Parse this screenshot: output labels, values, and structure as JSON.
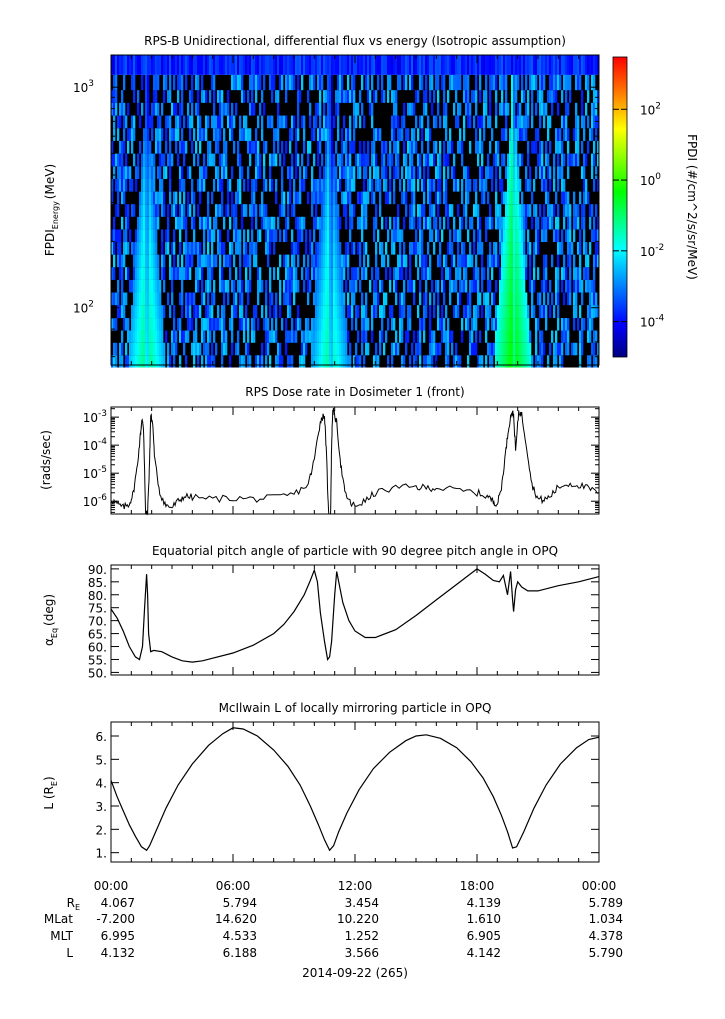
{
  "chart_data": [
    {
      "type": "heatmap",
      "title": "RPS-B  Unidirectional, differential flux vs energy (Isotropic assumption)",
      "ylabel_main": "FPDI",
      "ylabel_sub": "Energy",
      "ylabel_unit": "(MeV)",
      "yscale": "log",
      "ylim": [
        55,
        1400
      ],
      "yticks": [
        {
          "value": 100,
          "base": "10",
          "exp": "2"
        },
        {
          "value": 1000,
          "base": "10",
          "exp": "3"
        }
      ],
      "xlim_hours": [
        0,
        24
      ],
      "zscale": "log",
      "zlim": [
        1e-05,
        3000
      ],
      "colorbar_label": "FPDI (#/cm^2/s/sr/MeV)",
      "colorbar_ticks": [
        {
          "value": 0.0001,
          "base": "10",
          "exp": "-4"
        },
        {
          "value": 0.01,
          "base": "10",
          "exp": "-2"
        },
        {
          "value": 1,
          "base": "10",
          "exp": "0"
        },
        {
          "value": 100,
          "base": "10",
          "exp": "2"
        }
      ],
      "energy_channels_mev": [
        57,
        65,
        74,
        84,
        96,
        110,
        125,
        143,
        163,
        186,
        212,
        242,
        276,
        315,
        359,
        410,
        468,
        534,
        610,
        696,
        795,
        908,
        1036,
        1250
      ],
      "belt_crossings": [
        {
          "center_hours": 1.75,
          "dip_hours": 1.78,
          "peak_log10_flux": -1.0
        },
        {
          "center_hours": 10.75,
          "dip_hours": 10.8,
          "peak_log10_flux": -1.2
        },
        {
          "center_hours": 19.75,
          "dip_hours": 19.8,
          "peak_log10_flux": -0.2
        }
      ],
      "background_log10_flux_range": [
        -3.9,
        -2.3
      ]
    },
    {
      "type": "line",
      "title": "RPS  Dose rate in Dosimeter 1 (front)",
      "ylabel": "(rads/sec)",
      "yscale": "log",
      "ylim": [
        3.5e-07,
        0.0023
      ],
      "yticks": [
        {
          "value": 1e-06,
          "base": "10",
          "exp": "-6"
        },
        {
          "value": 1e-05,
          "base": "10",
          "exp": "-5"
        },
        {
          "value": 0.0001,
          "base": "10",
          "exp": "-4"
        },
        {
          "value": 0.001,
          "base": "10",
          "exp": "-3"
        }
      ],
      "series": [
        {
          "x": [
            0.0,
            0.3,
            0.6,
            0.9,
            1.1,
            1.3,
            1.45,
            1.5,
            1.55,
            1.6,
            1.7,
            1.8,
            1.9,
            1.95,
            2.05,
            2.15,
            2.4,
            2.7,
            3.0,
            3.3,
            3.6,
            4.0,
            5.0,
            6.0,
            7.0,
            8.0,
            9.0,
            9.7,
            10.0,
            10.2,
            10.35,
            10.5,
            10.6,
            10.7,
            10.8,
            10.85,
            10.9,
            10.95,
            11.1,
            11.3,
            11.5,
            11.8,
            12.0,
            12.5,
            13.0,
            14.0,
            15.0,
            15.5,
            16.0,
            17.0,
            18.0,
            18.5,
            18.8,
            19.0,
            19.2,
            19.4,
            19.55,
            19.7,
            19.8,
            19.9,
            20.05,
            20.2,
            20.45,
            20.7,
            21.0,
            21.3,
            21.6,
            22.0,
            22.5,
            23.0,
            23.5,
            24.0
          ],
          "y": [
            1.2e-06,
            8e-07,
            6e-07,
            8e-07,
            2e-06,
            2e-05,
            0.00025,
            0.0006,
            0.0008,
            0.0004,
            3.5e-07,
            3.5e-07,
            3e-05,
            0.0012,
            0.0006,
            3e-05,
            2e-06,
            7e-07,
            6e-07,
            1e-06,
            1.5e-06,
            1.4e-06,
            1.2e-06,
            1.3e-06,
            1.2e-06,
            1.3e-06,
            1.8e-06,
            4e-06,
            3e-05,
            0.0003,
            0.0009,
            0.0012,
            4e-05,
            3.5e-07,
            3.5e-07,
            0.0001,
            0.0015,
            0.0016,
            0.0006,
            2e-05,
            2e-06,
            8e-07,
            7e-07,
            1e-06,
            2e-06,
            3e-06,
            3.2e-06,
            3e-06,
            3e-06,
            2.5e-06,
            2e-06,
            1.5e-06,
            1e-06,
            8e-07,
            3e-06,
            5e-05,
            0.0004,
            0.0015,
            0.0012,
            6e-05,
            0.0016,
            0.0012,
            8e-05,
            4e-06,
            1.2e-06,
            1.1e-06,
            1.5e-06,
            3.2e-06,
            4.2e-06,
            3.8e-06,
            2.8e-06,
            2e-06
          ]
        }
      ]
    },
    {
      "type": "line",
      "title": "Equatorial pitch angle of particle with 90 degree pitch angle in OPQ",
      "ylabel_main": "α",
      "ylabel_sub": "Eq",
      "ylabel_unit": "(deg)",
      "ylim": [
        49,
        91.5
      ],
      "yticks": [
        50,
        55,
        60,
        65,
        70,
        75,
        80,
        85,
        90
      ],
      "ytick_labels": [
        "50.",
        "55.",
        "60.",
        "65.",
        "70.",
        "75.",
        "80.",
        "85.",
        "90."
      ],
      "series": [
        {
          "x": [
            0.0,
            0.3,
            0.6,
            0.9,
            1.2,
            1.4,
            1.55,
            1.65,
            1.75,
            1.8,
            1.85,
            1.95,
            2.1,
            2.5,
            3.0,
            3.5,
            4.0,
            4.5,
            5.0,
            6.0,
            7.0,
            8.0,
            8.5,
            9.0,
            9.5,
            9.8,
            10.0,
            10.15,
            10.3,
            10.5,
            10.65,
            10.75,
            10.85,
            11.0,
            11.1,
            11.2,
            11.4,
            11.7,
            12.0,
            12.5,
            13.0,
            14.0,
            15.0,
            16.0,
            17.0,
            18.0,
            18.4,
            18.8,
            19.1,
            19.3,
            19.5,
            19.65,
            19.75,
            19.8,
            19.9,
            20.0,
            20.2,
            20.5,
            21.0,
            22.0,
            23.0,
            24.0
          ],
          "y": [
            74.5,
            71.0,
            66.0,
            60.0,
            56.0,
            55.0,
            60.0,
            75.0,
            88.0,
            80.0,
            65.0,
            58.0,
            58.5,
            58.0,
            56.0,
            54.5,
            54.0,
            54.5,
            55.5,
            57.5,
            60.5,
            65.0,
            68.5,
            73.5,
            80.0,
            85.5,
            89.5,
            85.0,
            73.0,
            62.0,
            55.0,
            56.0,
            62.0,
            80.0,
            89.0,
            85.0,
            77.0,
            70.0,
            66.0,
            63.5,
            63.5,
            66.5,
            72.0,
            78.0,
            84.0,
            90.0,
            88.0,
            85.5,
            85.0,
            87.5,
            80.0,
            89.0,
            78.0,
            73.5,
            82.0,
            85.0,
            83.0,
            81.5,
            81.5,
            83.5,
            85.0,
            87.0
          ]
        }
      ]
    },
    {
      "type": "line",
      "title": "McIlwain L of locally mirroring particle in OPQ",
      "ylabel_main": "L (R",
      "ylabel_sub": "E",
      "ylabel_unit": ")",
      "ylim": [
        0.6,
        6.6
      ],
      "yticks": [
        1,
        2,
        3,
        4,
        5,
        6
      ],
      "ytick_labels": [
        "1.",
        "2.",
        "3.",
        "4.",
        "5.",
        "6."
      ],
      "series": [
        {
          "x": [
            0.0,
            0.3,
            0.6,
            0.9,
            1.2,
            1.5,
            1.75,
            1.9,
            2.2,
            2.7,
            3.3,
            4.0,
            4.8,
            5.5,
            6.0,
            6.5,
            7.2,
            8.0,
            8.7,
            9.3,
            9.8,
            10.2,
            10.5,
            10.75,
            10.95,
            11.2,
            11.6,
            12.2,
            12.9,
            13.7,
            14.5,
            15.0,
            15.5,
            16.2,
            17.0,
            17.7,
            18.3,
            18.8,
            19.2,
            19.5,
            19.75,
            19.95,
            20.3,
            20.8,
            21.4,
            22.1,
            22.9,
            23.5,
            24.0
          ],
          "y": [
            4.1,
            3.4,
            2.8,
            2.2,
            1.7,
            1.25,
            1.1,
            1.3,
            1.9,
            2.9,
            3.9,
            4.8,
            5.6,
            6.1,
            6.35,
            6.3,
            6.0,
            5.4,
            4.7,
            3.9,
            3.0,
            2.2,
            1.55,
            1.1,
            1.3,
            1.9,
            2.7,
            3.7,
            4.6,
            5.3,
            5.8,
            6.0,
            6.05,
            5.9,
            5.5,
            4.9,
            4.2,
            3.4,
            2.6,
            1.9,
            1.2,
            1.25,
            1.9,
            2.9,
            3.9,
            4.8,
            5.5,
            5.85,
            5.95
          ]
        }
      ]
    }
  ],
  "xaxis": {
    "tick_labels": [
      "00:00",
      "06:00",
      "12:00",
      "18:00",
      "00:00"
    ],
    "row_labels": [
      {
        "main": "R",
        "sub": "E"
      },
      {
        "main": "MLat",
        "sub": ""
      },
      {
        "main": "MLT",
        "sub": ""
      },
      {
        "main": "L",
        "sub": ""
      }
    ],
    "rows": [
      [
        "4.067",
        "5.794",
        "3.454",
        "4.139",
        "5.789"
      ],
      [
        "-7.200",
        "14.620",
        "10.220",
        "1.610",
        "1.034"
      ],
      [
        "6.995",
        "4.533",
        "1.252",
        "6.905",
        "4.378"
      ],
      [
        "4.132",
        "6.188",
        "3.566",
        "4.142",
        "5.790"
      ]
    ],
    "date_label": "2014-09-22 (265)"
  }
}
